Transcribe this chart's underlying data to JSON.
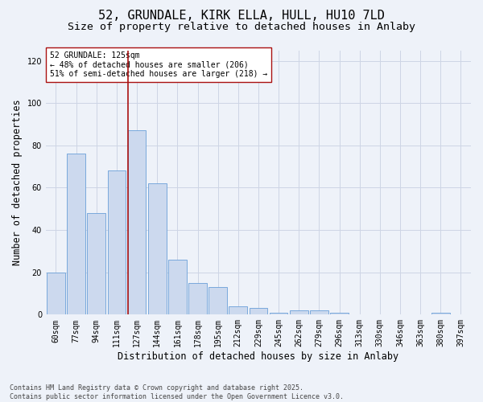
{
  "title_line1": "52, GRUNDALE, KIRK ELLA, HULL, HU10 7LD",
  "title_line2": "Size of property relative to detached houses in Anlaby",
  "xlabel": "Distribution of detached houses by size in Anlaby",
  "ylabel": "Number of detached properties",
  "categories": [
    "60sqm",
    "77sqm",
    "94sqm",
    "111sqm",
    "127sqm",
    "144sqm",
    "161sqm",
    "178sqm",
    "195sqm",
    "212sqm",
    "229sqm",
    "245sqm",
    "262sqm",
    "279sqm",
    "296sqm",
    "313sqm",
    "330sqm",
    "346sqm",
    "363sqm",
    "380sqm",
    "397sqm"
  ],
  "values": [
    20,
    76,
    48,
    68,
    87,
    62,
    26,
    15,
    13,
    4,
    3,
    1,
    2,
    2,
    1,
    0,
    0,
    0,
    0,
    1,
    0
  ],
  "bar_color": "#ccd9ee",
  "bar_edge_color": "#6a9fd8",
  "grid_color": "#cdd5e5",
  "background_color": "#eef2f9",
  "vline_index": 4,
  "vline_color": "#aa1111",
  "annotation_text": "52 GRUNDALE: 125sqm\n← 48% of detached houses are smaller (206)\n51% of semi-detached houses are larger (218) →",
  "annotation_box_facecolor": "#ffffff",
  "annotation_box_edgecolor": "#aa1111",
  "ylim": [
    0,
    125
  ],
  "yticks": [
    0,
    20,
    40,
    60,
    80,
    100,
    120
  ],
  "footnote": "Contains HM Land Registry data © Crown copyright and database right 2025.\nContains public sector information licensed under the Open Government Licence v3.0.",
  "title_fontsize": 11,
  "subtitle_fontsize": 9.5,
  "axis_label_fontsize": 8.5,
  "tick_fontsize": 7,
  "annotation_fontsize": 7,
  "footnote_fontsize": 6
}
